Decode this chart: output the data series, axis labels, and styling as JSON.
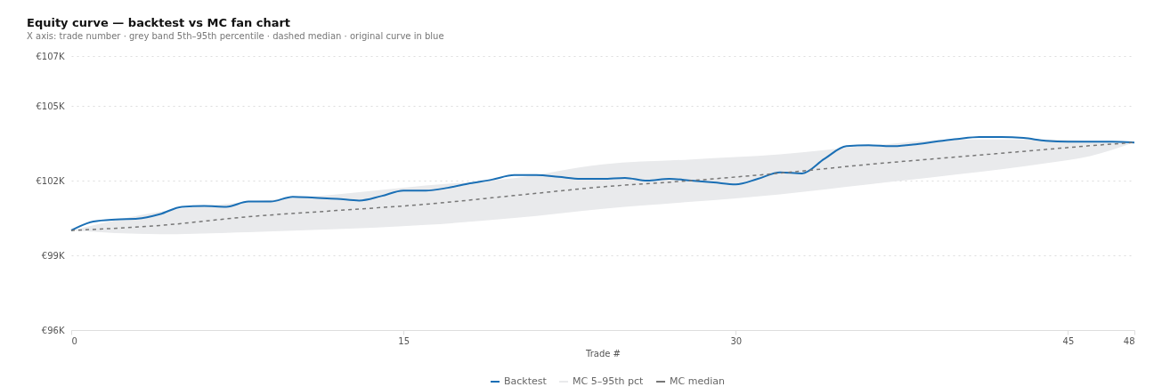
{
  "chart_data": {
    "type": "line",
    "title": "Equity curve — backtest vs MC fan chart",
    "subtitle": "X axis: trade number · grey band 5th–95th percentile · dashed median · original curve in blue",
    "xlabel": "Trade #",
    "xlim": [
      0,
      48
    ],
    "xticks": [
      0,
      15,
      30,
      45,
      48
    ],
    "ylim": [
      96000,
      107000
    ],
    "yticks": [
      {
        "value": 96000,
        "label": "€96K"
      },
      {
        "value": 99000,
        "label": "€99K"
      },
      {
        "value": 102000,
        "label": "€102K"
      },
      {
        "value": 105000,
        "label": "€105K"
      },
      {
        "value": 107000,
        "label": "€107K"
      }
    ],
    "grid": "y",
    "legend": "bottom",
    "marker": "none",
    "series": [
      {
        "name": "Backtest",
        "type": "line",
        "color": "#1a6fb5",
        "line_style": "solid",
        "x": [
          0,
          1,
          2,
          3,
          4,
          5,
          6,
          7,
          8,
          9,
          10,
          11,
          12,
          13,
          14,
          15,
          16,
          17,
          18,
          19,
          20,
          21,
          22,
          23,
          24,
          25,
          26,
          27,
          28,
          29,
          30,
          31,
          32,
          33,
          34,
          35,
          36,
          37,
          38,
          39,
          40,
          41,
          42,
          43,
          44,
          45,
          46,
          47,
          48
        ],
        "values": [
          100000,
          100360,
          100440,
          100470,
          100650,
          100950,
          100980,
          100950,
          101160,
          101160,
          101350,
          101310,
          101270,
          101200,
          101380,
          101600,
          101600,
          101710,
          101890,
          102040,
          102220,
          102220,
          102150,
          102070,
          102070,
          102110,
          102000,
          102070,
          102000,
          101930,
          101850,
          102070,
          102330,
          102290,
          102870,
          103380,
          103420,
          103380,
          103450,
          103560,
          103670,
          103750,
          103750,
          103710,
          103600,
          103560,
          103560,
          103560,
          103530
        ]
      },
      {
        "name": "MC 5–95th pct",
        "type": "area",
        "color": "#e9eaec"
      },
      {
        "name": "MC median",
        "type": "line",
        "color": "#777777",
        "line_style": "dashed",
        "x": [
          0,
          4,
          8,
          12,
          16,
          20,
          24,
          28,
          32,
          36,
          40,
          44,
          46,
          48
        ],
        "values": [
          100000,
          100200,
          100550,
          100800,
          101050,
          101400,
          101750,
          102000,
          102300,
          102650,
          102950,
          103250,
          103400,
          103530
        ],
        "lower": [
          100000,
          99850,
          99930,
          100050,
          100220,
          100500,
          100870,
          101150,
          101450,
          101850,
          102250,
          102700,
          102980,
          103530
        ],
        "upper": [
          100000,
          100750,
          101150,
          101450,
          101800,
          102100,
          102650,
          102850,
          103050,
          103400,
          103650,
          103650,
          103600,
          103530
        ]
      }
    ]
  }
}
